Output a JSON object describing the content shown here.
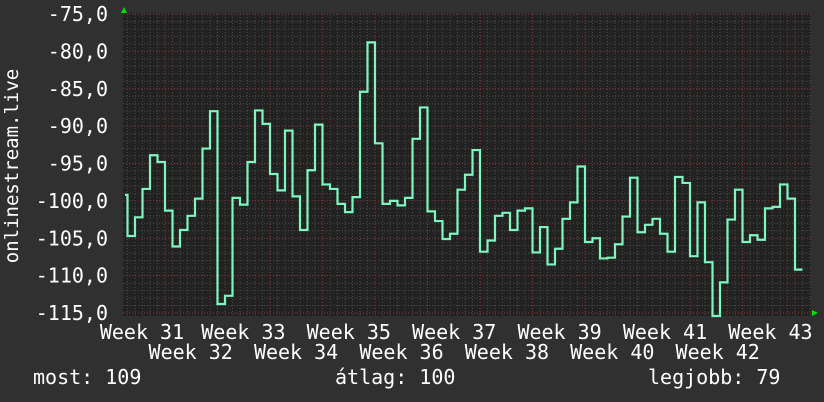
{
  "chart_data": {
    "type": "line",
    "step": true,
    "ylabel": "onlinestream.live",
    "ylim": [
      -115,
      -75
    ],
    "yticks": [
      "-75,0",
      "-80,0",
      "-85,0",
      "-90,0",
      "-95,0",
      "-100,0",
      "-105,0",
      "-110,0",
      "-115,0"
    ],
    "xticks": [
      "Week 31",
      "Week 32",
      "Week 33",
      "Week 34",
      "Week 35",
      "Week 36",
      "Week 37",
      "Week 38",
      "Week 39",
      "Week 40",
      "Week 41",
      "Week 42",
      "Week 43"
    ],
    "grid": true,
    "values": [
      -99.2,
      -104.7,
      -102.2,
      -98.4,
      -93.9,
      -94.8,
      -101.3,
      -106.1,
      -103.9,
      -102.0,
      -99.7,
      -93.0,
      -88.0,
      -113.8,
      -112.7,
      -99.6,
      -100.5,
      -94.8,
      -87.9,
      -89.7,
      -96.4,
      -98.6,
      -90.6,
      -99.4,
      -103.9,
      -95.9,
      -89.8,
      -97.8,
      -98.4,
      -100.4,
      -101.5,
      -99.5,
      -85.4,
      -78.8,
      -92.3,
      -100.4,
      -100.0,
      -100.6,
      -99.6,
      -91.7,
      -87.5,
      -101.4,
      -102.7,
      -105.1,
      -104.4,
      -98.5,
      -96.5,
      -93.2,
      -106.8,
      -105.3,
      -102.0,
      -101.6,
      -103.9,
      -101.3,
      -101.0,
      -106.9,
      -103.5,
      -108.5,
      -106.4,
      -102.4,
      -100.2,
      -95.4,
      -105.5,
      -105.0,
      -107.7,
      -107.6,
      -105.8,
      -102.1,
      -96.9,
      -104.2,
      -103.2,
      -102.4,
      -104.4,
      -106.8,
      -96.8,
      -97.6,
      -107.4,
      -100.2,
      -108.2,
      -115.5,
      -110.9,
      -102.5,
      -98.5,
      -105.5,
      -104.6,
      -105.2,
      -101.0,
      -100.8,
      -97.8,
      -99.7,
      -109.2
    ],
    "colors": {
      "line": "#7ff5c0",
      "background": "#303030",
      "plot": "#222222",
      "major_grid": "#8a3a3a",
      "minor_grid": "#4a4a4a",
      "axis_arrow": "#00e000"
    }
  },
  "legend": {
    "current": "most: 109",
    "average": "átlag: 100",
    "best": "legjobb: 79"
  }
}
